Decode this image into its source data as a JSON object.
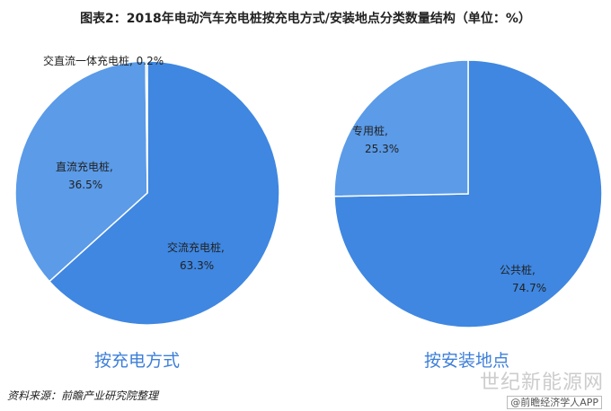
{
  "title": "图表2：2018年电动汽车充电桩按充电方式/安装地点分类数量结构（单位：%）",
  "chart_data": [
    {
      "type": "pie",
      "title": "按充电方式",
      "slices": [
        {
          "name": "交流充电桩",
          "value": 63.3,
          "label": "63.3%",
          "color": "#3f87e1"
        },
        {
          "name": "直流充电桩",
          "value": 36.5,
          "label": "36.5%",
          "color": "#5b9be8"
        },
        {
          "name": "交直流一体充电桩",
          "value": 0.2,
          "label": "0.2%",
          "color": "#5b9be8"
        }
      ]
    },
    {
      "type": "pie",
      "title": "按安装地点",
      "slices": [
        {
          "name": "公共桩",
          "value": 74.7,
          "label": "74.7%",
          "color": "#3f87e1"
        },
        {
          "name": "专用桩",
          "value": 25.3,
          "label": "25.3%",
          "color": "#5b9be8"
        }
      ]
    }
  ],
  "source": "资料来源：前瞻产业研究院整理",
  "watermark": "世纪新能源网",
  "watermark2": "@前瞻经济学人APP"
}
